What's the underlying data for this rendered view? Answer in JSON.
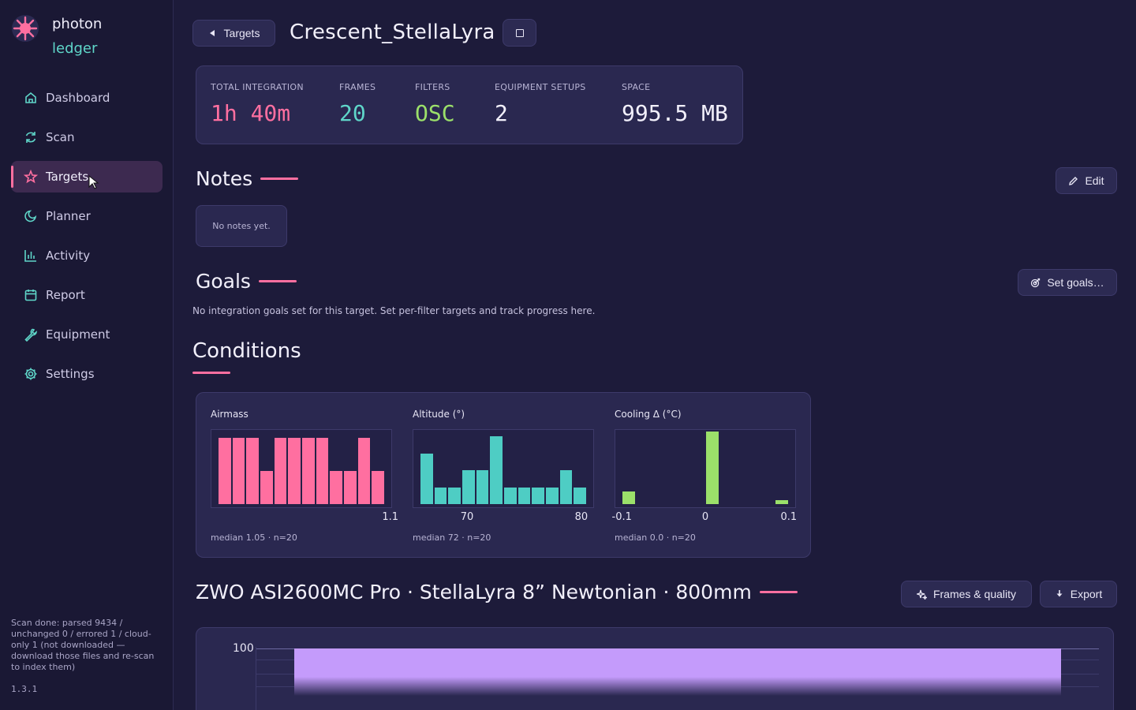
{
  "app": {
    "logo_line1": "photon",
    "logo_line2": "ledger",
    "version": "1.3.1",
    "scan_status": "Scan done: parsed 9434 / unchanged 0 / errored 1 / cloud-only 1 (not downloaded — download those files and re-scan to index them)"
  },
  "sidebar": {
    "items": [
      {
        "label": "Dashboard",
        "icon": "home-icon"
      },
      {
        "label": "Scan",
        "icon": "refresh-icon"
      },
      {
        "label": "Targets",
        "icon": "star-icon",
        "active": true
      },
      {
        "label": "Planner",
        "icon": "moon-icon"
      },
      {
        "label": "Activity",
        "icon": "bar-chart-icon"
      },
      {
        "label": "Report",
        "icon": "calendar-icon"
      },
      {
        "label": "Equipment",
        "icon": "wrench-icon"
      },
      {
        "label": "Settings",
        "icon": "gear-icon"
      }
    ]
  },
  "header": {
    "back_label": "Targets",
    "title": "Crescent_StellaLyra"
  },
  "stats": [
    {
      "label": "TOTAL INTEGRATION",
      "value": "1h 40m",
      "color": "#ff6fa0"
    },
    {
      "label": "FRAMES",
      "value": "20",
      "color": "#5fd6c9"
    },
    {
      "label": "FILTERS",
      "value": "OSC",
      "color": "#9be06a"
    },
    {
      "label": "EQUIPMENT SETUPS",
      "value": "2",
      "color": "#f2f0fb"
    },
    {
      "label": "SPACE",
      "value": "995.5 MB",
      "color": "#f2f0fb"
    }
  ],
  "notes": {
    "title": "Notes",
    "edit_label": "Edit",
    "empty_text": "No notes yet."
  },
  "goals": {
    "title": "Goals",
    "button_label": "Set goals…",
    "empty_text": "No integration goals set for this target. Set per-filter targets and track progress here."
  },
  "conditions": {
    "title": "Conditions",
    "charts": [
      {
        "title": "Airmass",
        "color": "#ff6fa0",
        "values": [
          0.91,
          0.91,
          0.91,
          0.46,
          0.91,
          0.91,
          0.91,
          0.91,
          0.46,
          0.46,
          0.91,
          0.46
        ],
        "ticks": [
          {
            "label": "1.1",
            "pos": 0.99
          }
        ],
        "footer": "median 1.05 · n=20"
      },
      {
        "title": "Altitude (°)",
        "color": "#4ecdc4",
        "values": [
          0.7,
          0.23,
          0.23,
          0.47,
          0.47,
          0.93,
          0.23,
          0.23,
          0.23,
          0.23,
          0.47,
          0.23
        ],
        "ticks": [
          {
            "label": "70",
            "pos": 0.3
          },
          {
            "label": "80",
            "pos": 0.93
          }
        ],
        "footer": "median 72 · n=20"
      },
      {
        "title": "Cooling Δ (°C)",
        "color": "#9be06a",
        "values": [
          0.17,
          0,
          0,
          0,
          0,
          0,
          1.0,
          0,
          0,
          0,
          0,
          0.05
        ],
        "ticks": [
          {
            "label": "-0.1",
            "pos": 0.04
          },
          {
            "label": "0",
            "pos": 0.5
          },
          {
            "label": "0.1",
            "pos": 0.96
          }
        ],
        "footer": "median 0.0 · n=20"
      }
    ]
  },
  "equipment": {
    "title": "ZWO ASI2600MC Pro · StellaLyra 8” Newtonian · 800mm",
    "frames_quality_label": "Frames & quality",
    "export_label": "Export",
    "y_top_tick": "100"
  }
}
